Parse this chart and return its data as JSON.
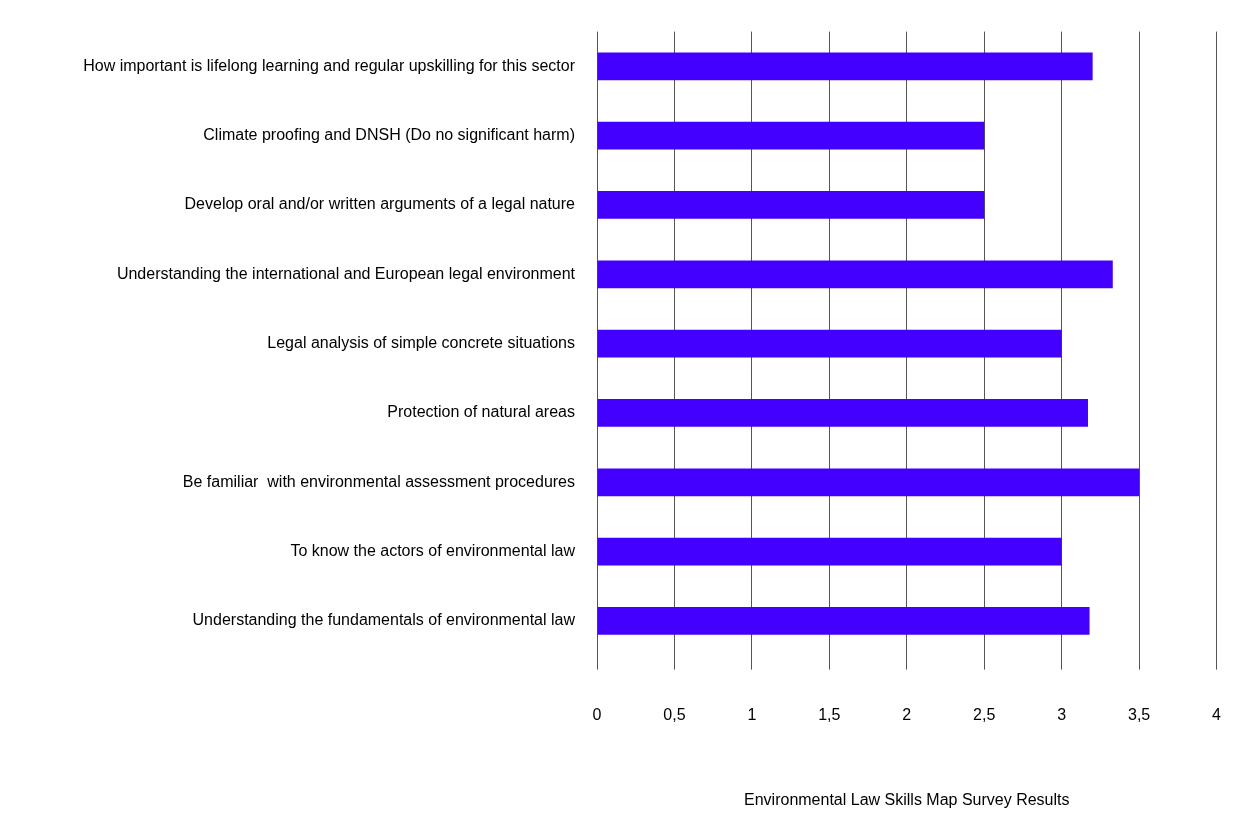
{
  "chart_data": {
    "type": "bar",
    "orientation": "horizontal",
    "xlabel": "Environmental Law Skills Map Survey Results",
    "categories": [
      "How important is lifelong learning and regular upskilling for this sector",
      "Climate proofing and DNSH (Do no significant harm)",
      "Develop oral and/or written arguments of a legal nature",
      "Understanding the international and European legal environment",
      "Legal analysis of simple concrete situations",
      "Protection of natural areas",
      "Be familiar  with environmental assessment procedures",
      "To know the actors of environmental law",
      "Understanding the fundamentals of environmental law"
    ],
    "values": [
      3.2,
      2.5,
      2.5,
      3.33,
      3.0,
      3.17,
      3.5,
      3.0,
      3.18
    ],
    "color": "#4400ff",
    "xlim": [
      0,
      4
    ],
    "xticks": [
      0,
      {
        "value": 0.5,
        "label": "0,5"
      },
      1,
      {
        "value": 1.5,
        "label": "1,5"
      },
      2,
      {
        "value": 2.5,
        "label": "2,5"
      },
      3,
      {
        "value": 3.5,
        "label": "3,5"
      },
      4
    ],
    "grid": "x",
    "legend": false
  }
}
